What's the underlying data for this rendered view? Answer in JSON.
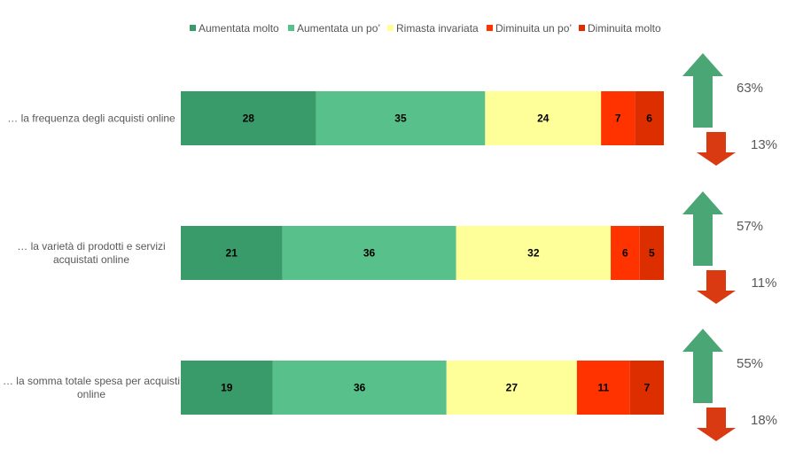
{
  "chart_data": {
    "type": "bar",
    "orientation": "horizontal",
    "stacked": true,
    "legend_position": "top",
    "grid": false,
    "xlim": [
      0,
      100
    ],
    "categories": [
      "… la frequenza degli acquisti online",
      "… la varietà di prodotti e servizi acquistati online",
      "… la somma totale spesa per acquisti online"
    ],
    "series": [
      {
        "name": "Aumentata molto",
        "color": "#3A9B6A",
        "values": [
          28,
          21,
          19
        ]
      },
      {
        "name": "Aumentata un po’",
        "color": "#58C08A",
        "values": [
          35,
          36,
          36
        ]
      },
      {
        "name": "Rimasta invariata",
        "color": "#FFFF99",
        "values": [
          24,
          32,
          27
        ]
      },
      {
        "name": "Diminuita un po’",
        "color": "#FF3300",
        "values": [
          7,
          6,
          11
        ]
      },
      {
        "name": "Diminuita molto",
        "color": "#DD2E00",
        "values": [
          6,
          5,
          7
        ]
      }
    ],
    "summary": [
      {
        "increase": "63%",
        "decrease": "13%"
      },
      {
        "increase": "57%",
        "decrease": "11%"
      },
      {
        "increase": "55%",
        "decrease": "18%"
      }
    ],
    "arrow_colors": {
      "up": "#4BA675",
      "down": "#D93A12"
    }
  }
}
